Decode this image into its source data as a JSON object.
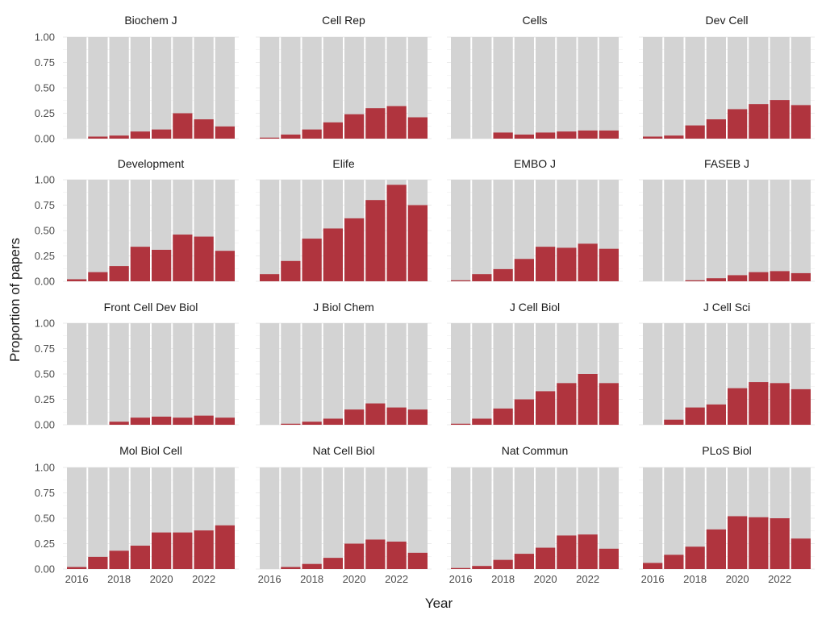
{
  "colors": {
    "background_bar": "#d3d3d3",
    "value_bar": "#b0343e",
    "grid": "#ebebeb"
  },
  "chart_data": {
    "type": "bar",
    "layout": "facet-grid",
    "ncol": 4,
    "xlabel": "Year",
    "ylabel": "Proportion of papers",
    "ylim": [
      0,
      1
    ],
    "yticks": [
      "0.00",
      "0.25",
      "0.50",
      "0.75",
      "1.00"
    ],
    "categories": [
      2016,
      2017,
      2018,
      2019,
      2020,
      2021,
      2022,
      2023
    ],
    "xtick_labels": [
      "2016",
      "2018",
      "2020",
      "2022"
    ],
    "panels": [
      {
        "title": "Biochem J",
        "values": [
          0.0,
          0.02,
          0.03,
          0.07,
          0.09,
          0.25,
          0.19,
          0.12
        ]
      },
      {
        "title": "Cell Rep",
        "values": [
          0.01,
          0.04,
          0.09,
          0.16,
          0.24,
          0.3,
          0.32,
          0.21
        ]
      },
      {
        "title": "Cells",
        "values": [
          0.0,
          0.0,
          0.06,
          0.04,
          0.06,
          0.07,
          0.08,
          0.08
        ]
      },
      {
        "title": "Dev Cell",
        "values": [
          0.02,
          0.03,
          0.13,
          0.19,
          0.29,
          0.34,
          0.38,
          0.33
        ]
      },
      {
        "title": "Development",
        "values": [
          0.02,
          0.09,
          0.15,
          0.34,
          0.31,
          0.46,
          0.44,
          0.3
        ]
      },
      {
        "title": "Elife",
        "values": [
          0.07,
          0.2,
          0.42,
          0.52,
          0.62,
          0.8,
          0.95,
          0.75
        ]
      },
      {
        "title": "EMBO J",
        "values": [
          0.01,
          0.07,
          0.12,
          0.22,
          0.34,
          0.33,
          0.37,
          0.32
        ]
      },
      {
        "title": "FASEB J",
        "values": [
          0.0,
          0.0,
          0.01,
          0.03,
          0.06,
          0.09,
          0.1,
          0.08
        ]
      },
      {
        "title": "Front Cell Dev Biol",
        "values": [
          0.0,
          0.0,
          0.03,
          0.07,
          0.08,
          0.07,
          0.09,
          0.07
        ]
      },
      {
        "title": "J Biol Chem",
        "values": [
          0.0,
          0.01,
          0.03,
          0.06,
          0.15,
          0.21,
          0.17,
          0.15
        ]
      },
      {
        "title": "J Cell Biol",
        "values": [
          0.01,
          0.06,
          0.16,
          0.25,
          0.33,
          0.41,
          0.5,
          0.41
        ]
      },
      {
        "title": "J Cell Sci",
        "values": [
          0.0,
          0.05,
          0.17,
          0.2,
          0.36,
          0.42,
          0.41,
          0.35
        ]
      },
      {
        "title": "Mol Biol Cell",
        "values": [
          0.02,
          0.12,
          0.18,
          0.23,
          0.36,
          0.36,
          0.38,
          0.43
        ]
      },
      {
        "title": "Nat Cell Biol",
        "values": [
          0.0,
          0.02,
          0.05,
          0.11,
          0.25,
          0.29,
          0.27,
          0.16
        ]
      },
      {
        "title": "Nat Commun",
        "values": [
          0.01,
          0.03,
          0.09,
          0.15,
          0.21,
          0.33,
          0.34,
          0.2
        ]
      },
      {
        "title": "PLoS Biol",
        "values": [
          0.06,
          0.14,
          0.22,
          0.39,
          0.52,
          0.51,
          0.5,
          0.3
        ]
      }
    ]
  }
}
